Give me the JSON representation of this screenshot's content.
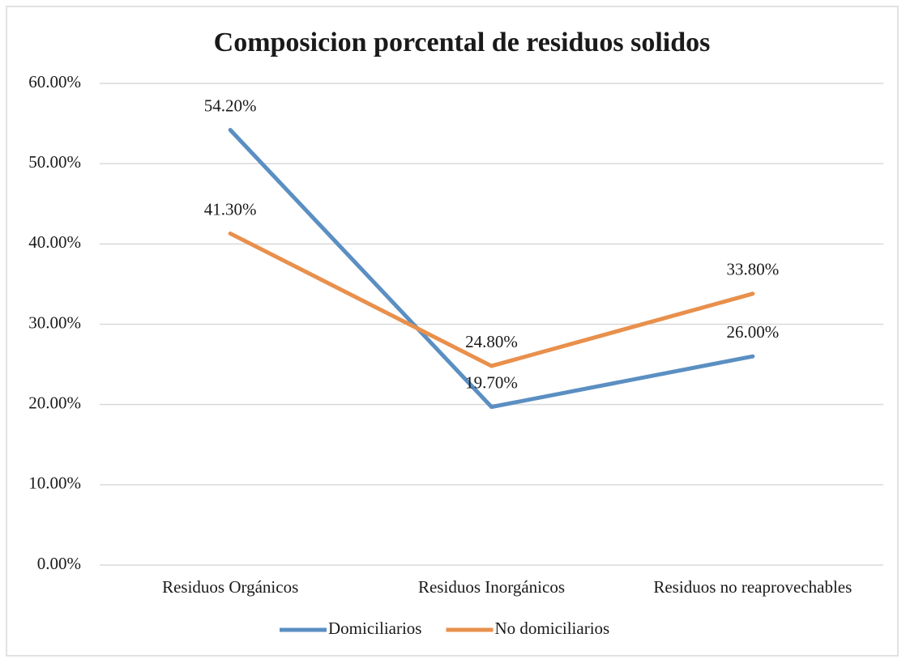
{
  "chart_data": {
    "type": "line",
    "title": "Composicion porcental de residuos solidos",
    "categories": [
      "Residuos Orgánicos",
      "Residuos Inorgánicos",
      "Residuos no reaprovechables"
    ],
    "series": [
      {
        "name": "Domiciliarios",
        "color": "#5b8fc2",
        "values": [
          54.2,
          19.7,
          26.0
        ],
        "value_labels": [
          "54.20%",
          "19.70%",
          "26.00%"
        ]
      },
      {
        "name": "No domiciliarios",
        "color": "#e8904c",
        "values": [
          41.3,
          24.8,
          33.8
        ],
        "value_labels": [
          "41.30%",
          "24.80%",
          "33.80%"
        ]
      }
    ],
    "ylim": [
      0,
      60
    ],
    "yticks": [
      {
        "value": 0,
        "label": "0.00%"
      },
      {
        "value": 10,
        "label": "10.00%"
      },
      {
        "value": 20,
        "label": "20.00%"
      },
      {
        "value": 30,
        "label": "30.00%"
      },
      {
        "value": 40,
        "label": "40.00%"
      },
      {
        "value": 50,
        "label": "50.00%"
      },
      {
        "value": 60,
        "label": "60.00%"
      }
    ],
    "grid": true,
    "legend": "bottom"
  }
}
